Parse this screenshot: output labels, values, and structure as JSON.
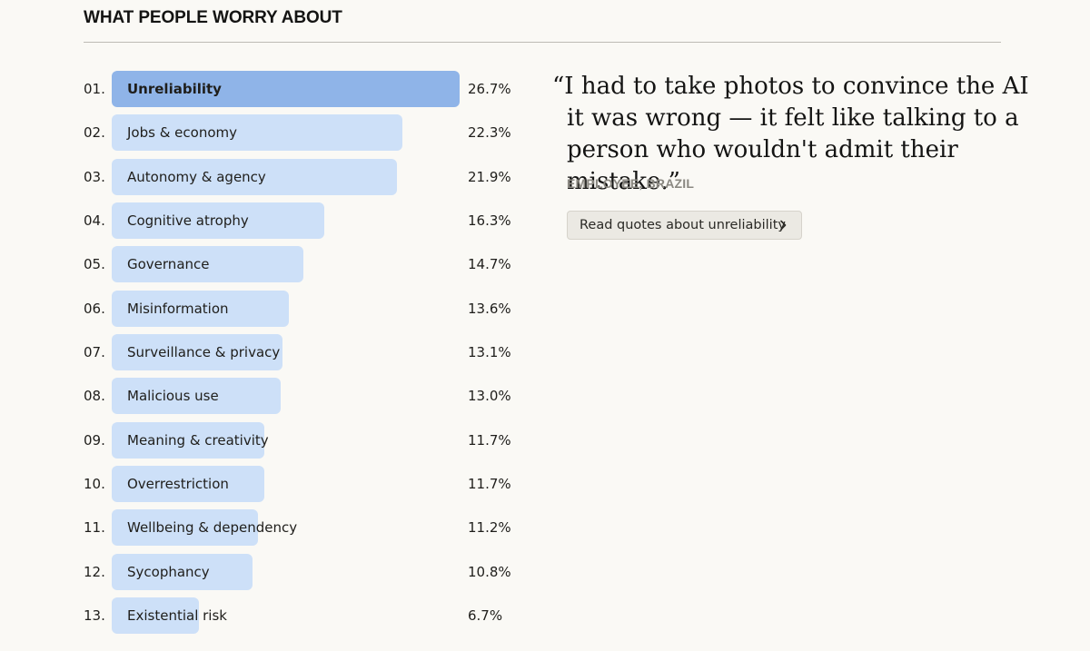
{
  "header": {
    "title": "WHAT PEOPLE WORRY ABOUT"
  },
  "chart_data": {
    "type": "bar",
    "orientation": "horizontal",
    "title": "WHAT PEOPLE WORRY ABOUT",
    "xlim": [
      0,
      26.7
    ],
    "unit": "%",
    "ranks": [
      "01.",
      "02.",
      "03.",
      "04.",
      "05.",
      "06.",
      "07.",
      "08.",
      "09.",
      "10.",
      "11.",
      "12.",
      "13."
    ],
    "categories": [
      "Unreliability",
      "Jobs & economy",
      "Autonomy & agency",
      "Cognitive atrophy",
      "Governance",
      "Misinformation",
      "Surveillance & privacy",
      "Malicious use",
      "Meaning & creativity",
      "Overrestriction",
      "Wellbeing & dependency",
      "Sycophancy",
      "Existential risk"
    ],
    "values": [
      26.7,
      22.3,
      21.9,
      16.3,
      14.7,
      13.6,
      13.1,
      13.0,
      11.7,
      11.7,
      11.2,
      10.8,
      6.7
    ],
    "value_labels": [
      "26.7%",
      "22.3%",
      "21.9%",
      "16.3%",
      "14.7%",
      "13.6%",
      "13.1%",
      "13.0%",
      "11.7%",
      "11.7%",
      "11.2%",
      "10.8%",
      "6.7%"
    ],
    "highlight_index": 0,
    "colors": {
      "highlight": "#8fb4e8",
      "default": "#cde0f8"
    }
  },
  "quote": {
    "text": "“I had to take photos to convince the AI it was wrong — it felt like talking to a person who wouldn't admit their mistake.”",
    "attribution": "EMPLOYEE, BRAZIL",
    "button_label": "Read quotes about unreliability",
    "button_icon": "chevron-right-icon"
  }
}
